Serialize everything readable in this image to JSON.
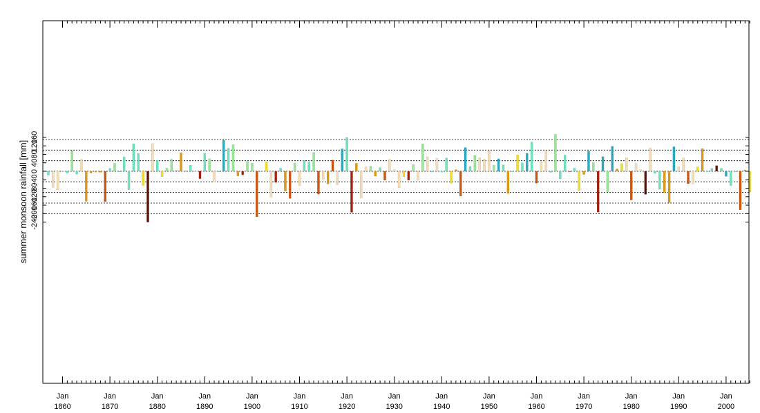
{
  "chart_data": {
    "type": "bar",
    "ylabel": "summer monsoon rainfall [mm]",
    "ylim": [
      -250,
      180
    ],
    "yticks": [
      160,
      120,
      80,
      40,
      0,
      -40,
      -80,
      -120,
      -160,
      -200,
      -240
    ],
    "gridlines": [
      150,
      100,
      50,
      0,
      -50,
      -100,
      -150,
      -200
    ],
    "grid": "horizontal dotted",
    "xlim": [
      1856,
      2006
    ],
    "xticks": [
      {
        "year": 1860,
        "month": "Jan",
        "label": "1860"
      },
      {
        "year": 1870,
        "month": "Jan",
        "label": "1870"
      },
      {
        "year": 1880,
        "month": "Jan",
        "label": "1880"
      },
      {
        "year": 1890,
        "month": "Jan",
        "label": "1890"
      },
      {
        "year": 1900,
        "month": "Jan",
        "label": "1900"
      },
      {
        "year": 1910,
        "month": "Jan",
        "label": "1910"
      },
      {
        "year": 1920,
        "month": "Jan",
        "label": "1920"
      },
      {
        "year": 1930,
        "month": "Jan",
        "label": "1930"
      },
      {
        "year": 1940,
        "month": "Jan",
        "label": "1940"
      },
      {
        "year": 1950,
        "month": "Jan",
        "label": "1950"
      },
      {
        "year": 1960,
        "month": "Jan",
        "label": "1960"
      },
      {
        "year": 1970,
        "month": "Jan",
        "label": "1970"
      },
      {
        "year": 1980,
        "month": "Jan",
        "label": "1980"
      },
      {
        "year": 1990,
        "month": "Jan",
        "label": "1990"
      },
      {
        "year": 2000,
        "month": "Jan",
        "label": "2000"
      }
    ],
    "colors": {
      "strong_positive": "#2aa9c2",
      "positive": "#6fe3c0",
      "mild_positive": "#98e698",
      "near_normal": "#f5dcb4",
      "mild_negative": "#f0de2a",
      "negative": "#e09a10",
      "strong_negative": "#cc5510",
      "severe_negative": "#a0200f",
      "extreme_negative": "#5a1208"
    },
    "x": [
      1857,
      1858,
      1859,
      1860,
      1861,
      1862,
      1863,
      1864,
      1865,
      1866,
      1867,
      1868,
      1869,
      1870,
      1871,
      1872,
      1873,
      1874,
      1875,
      1876,
      1877,
      1878,
      1879,
      1880,
      1881,
      1882,
      1883,
      1884,
      1885,
      1886,
      1887,
      1888,
      1889,
      1890,
      1891,
      1892,
      1893,
      1894,
      1895,
      1896,
      1897,
      1898,
      1899,
      1900,
      1901,
      1902,
      1903,
      1904,
      1905,
      1906,
      1907,
      1908,
      1909,
      1910,
      1911,
      1912,
      1913,
      1914,
      1915,
      1916,
      1917,
      1918,
      1919,
      1920,
      1921,
      1922,
      1923,
      1924,
      1925,
      1926,
      1927,
      1928,
      1929,
      1930,
      1931,
      1932,
      1933,
      1934,
      1935,
      1936,
      1937,
      1938,
      1939,
      1940,
      1941,
      1942,
      1943,
      1944,
      1945,
      1946,
      1947,
      1948,
      1949,
      1950,
      1951,
      1952,
      1953,
      1954,
      1955,
      1956,
      1957,
      1958,
      1959,
      1960,
      1961,
      1962,
      1963,
      1964,
      1965,
      1966,
      1967,
      1968,
      1969,
      1970,
      1971,
      1972,
      1973,
      1974,
      1975,
      1976,
      1977,
      1978,
      1979,
      1980,
      1981,
      1982,
      1983,
      1984,
      1985,
      1986,
      1987,
      1988,
      1989,
      1990,
      1991,
      1992,
      1993,
      1994,
      1995,
      1996,
      1997,
      1998,
      1999,
      2000,
      2001,
      2002,
      2003,
      2004,
      2005
    ],
    "values": [
      -18,
      -76,
      -88,
      2,
      -9,
      98,
      -14,
      56,
      -142,
      -8,
      -4,
      -5,
      -144,
      14,
      38,
      0,
      68,
      -87,
      130,
      84,
      -67,
      -240,
      131,
      52,
      -26,
      15,
      57,
      4,
      88,
      2,
      29,
      0,
      -35,
      85,
      59,
      -52,
      0,
      147,
      109,
      126,
      -22,
      -17,
      46,
      39,
      -215,
      0,
      44,
      -122,
      -53,
      15,
      -94,
      -128,
      39,
      -68,
      51,
      44,
      89,
      -108,
      -40,
      -60,
      53,
      -64,
      106,
      160,
      -194,
      38,
      -126,
      21,
      24,
      -23,
      17,
      -42,
      57,
      8,
      -78,
      -26,
      -42,
      32,
      -43,
      130,
      68,
      0,
      62,
      -4,
      63,
      -56,
      8,
      -117,
      112,
      23,
      75,
      64,
      58,
      99,
      29,
      59,
      31,
      -105,
      0,
      78,
      40,
      85,
      138,
      -56,
      44,
      99,
      -5,
      175,
      -36,
      77,
      0,
      15,
      -91,
      -15,
      95,
      41,
      -193,
      69,
      -97,
      118,
      11,
      37,
      64,
      -136,
      38,
      8,
      -109,
      110,
      -10,
      -85,
      -101,
      -148,
      116,
      21,
      63,
      -59,
      -60,
      21,
      107,
      0,
      14,
      27,
      14,
      -24,
      -68,
      0,
      -182,
      6,
      -99
    ],
    "color_keys": [
      "positive",
      "near_normal",
      "near_normal",
      "mild_positive",
      "positive",
      "mild_positive",
      "positive",
      "near_normal",
      "negative",
      "negative",
      "negative",
      "negative",
      "strong_negative",
      "positive",
      "mild_positive",
      "positive",
      "positive",
      "positive",
      "positive",
      "positive",
      "mild_negative",
      "extreme_negative",
      "near_normal",
      "positive",
      "mild_negative",
      "mild_positive",
      "mild_positive",
      "negative",
      "negative",
      "negative",
      "positive",
      "near_normal",
      "severe_negative",
      "positive",
      "mild_positive",
      "near_normal",
      "positive",
      "strong_positive",
      "positive",
      "mild_positive",
      "negative",
      "severe_negative",
      "mild_positive",
      "mild_positive",
      "strong_negative",
      "positive",
      "mild_negative",
      "near_normal",
      "severe_negative",
      "positive",
      "negative",
      "strong_negative",
      "mild_positive",
      "near_normal",
      "positive",
      "positive",
      "mild_positive",
      "strong_negative",
      "near_normal",
      "negative",
      "strong_negative",
      "near_normal",
      "strong_positive",
      "positive",
      "severe_negative",
      "negative",
      "near_normal",
      "near_normal",
      "mild_positive",
      "negative",
      "positive",
      "strong_negative",
      "near_normal",
      "near_normal",
      "near_normal",
      "mild_negative",
      "severe_negative",
      "mild_positive",
      "near_normal",
      "mild_positive",
      "near_normal",
      "positive",
      "near_normal",
      "positive",
      "positive",
      "mild_negative",
      "negative",
      "strong_negative",
      "strong_positive",
      "positive",
      "mild_positive",
      "near_normal",
      "near_normal",
      "near_normal",
      "mild_positive",
      "strong_positive",
      "positive",
      "negative",
      "positive",
      "mild_negative",
      "positive",
      "strong_positive",
      "positive",
      "strong_negative",
      "near_normal",
      "near_normal",
      "positive",
      "mild_positive",
      "positive",
      "positive",
      "strong_negative",
      "positive",
      "mild_negative",
      "negative",
      "strong_positive",
      "mild_positive",
      "severe_negative",
      "strong_positive",
      "mild_positive",
      "strong_positive",
      "negative",
      "mild_negative",
      "near_normal",
      "strong_negative",
      "near_normal",
      "near_normal",
      "extreme_negative",
      "near_normal",
      "positive",
      "positive",
      "negative",
      "negative",
      "strong_positive",
      "near_normal",
      "near_normal",
      "strong_negative",
      "near_normal",
      "mild_negative",
      "negative",
      "positive",
      "positive",
      "extreme_negative",
      "positive",
      "strong_positive",
      "positive",
      "mild_positive",
      "strong_negative",
      "negative",
      "mild_negative"
    ]
  }
}
